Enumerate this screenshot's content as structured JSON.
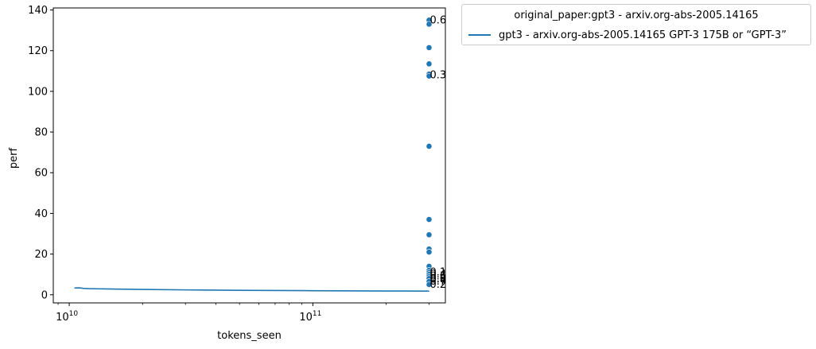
{
  "chart_data": {
    "type": "scatter",
    "xlabel": "tokens_seen",
    "ylabel": "perf",
    "xscale": "log",
    "xlim": [
      8600000000.0,
      350000000000.0
    ],
    "ylim": [
      -4,
      141
    ],
    "x_ticks": [
      {
        "value": 10000000000.0,
        "base": "10",
        "exp": "10"
      },
      {
        "value": 100000000000.0,
        "base": "10",
        "exp": "11"
      }
    ],
    "y_ticks": [
      0,
      20,
      40,
      60,
      80,
      100,
      120,
      140
    ],
    "color": "#1f77b4",
    "legend": {
      "placement": "outside-top-right",
      "title": "original_paper:gpt3 - arxiv.org-abs-2005.14165",
      "entries": [
        {
          "label": "gpt3 - arxiv.org-abs-2005.14165 GPT-3 175B or “GPT-3”"
        }
      ]
    },
    "series": [
      {
        "name": "gpt3 - arxiv.org-abs-2005.14165 GPT-3 175B or “GPT-3”",
        "kind": "line",
        "points": [
          [
            10500000000.0,
            3.3
          ],
          [
            11000000000.0,
            3.4
          ],
          [
            11500000000.0,
            3.1
          ],
          [
            12000000000.0,
            3.0
          ],
          [
            15000000000.0,
            2.8
          ],
          [
            20000000000.0,
            2.6
          ],
          [
            30000000000.0,
            2.4
          ],
          [
            50000000000.0,
            2.2
          ],
          [
            100000000000.0,
            2.0
          ],
          [
            200000000000.0,
            1.85
          ],
          [
            300000000000.0,
            1.8
          ]
        ]
      },
      {
        "name": "points",
        "kind": "scatter",
        "points": [
          [
            300000000000.0,
            135
          ],
          [
            300000000000.0,
            133
          ],
          [
            300000000000.0,
            121.5
          ],
          [
            300000000000.0,
            113.5
          ],
          [
            300000000000.0,
            108.5
          ],
          [
            300000000000.0,
            107.5
          ],
          [
            300000000000.0,
            73
          ],
          [
            300000000000.0,
            37
          ],
          [
            300000000000.0,
            29.5
          ],
          [
            300000000000.0,
            22.5
          ],
          [
            300000000000.0,
            21
          ],
          [
            300000000000.0,
            14
          ],
          [
            300000000000.0,
            12
          ],
          [
            300000000000.0,
            11
          ],
          [
            300000000000.0,
            10
          ],
          [
            300000000000.0,
            9
          ],
          [
            300000000000.0,
            8
          ],
          [
            300000000000.0,
            6.5
          ],
          [
            300000000000.0,
            5
          ]
        ]
      }
    ],
    "annotations": [
      {
        "x": 300000000000.0,
        "y": 135,
        "text": "0.6"
      },
      {
        "x": 300000000000.0,
        "y": 108,
        "text": "0.3"
      },
      {
        "x": 300000000000.0,
        "y": 11,
        "text": "0.1"
      },
      {
        "x": 300000000000.0,
        "y": 10,
        "text": "0.4"
      },
      {
        "x": 300000000000.0,
        "y": 9,
        "text": "0.5"
      },
      {
        "x": 300000000000.0,
        "y": 8,
        "text": "0.0"
      },
      {
        "x": 300000000000.0,
        "y": 7.5,
        "text": "0.8"
      },
      {
        "x": 300000000000.0,
        "y": 6.5,
        "text": "0.7"
      },
      {
        "x": 300000000000.0,
        "y": 5,
        "text": "0.2"
      }
    ]
  }
}
